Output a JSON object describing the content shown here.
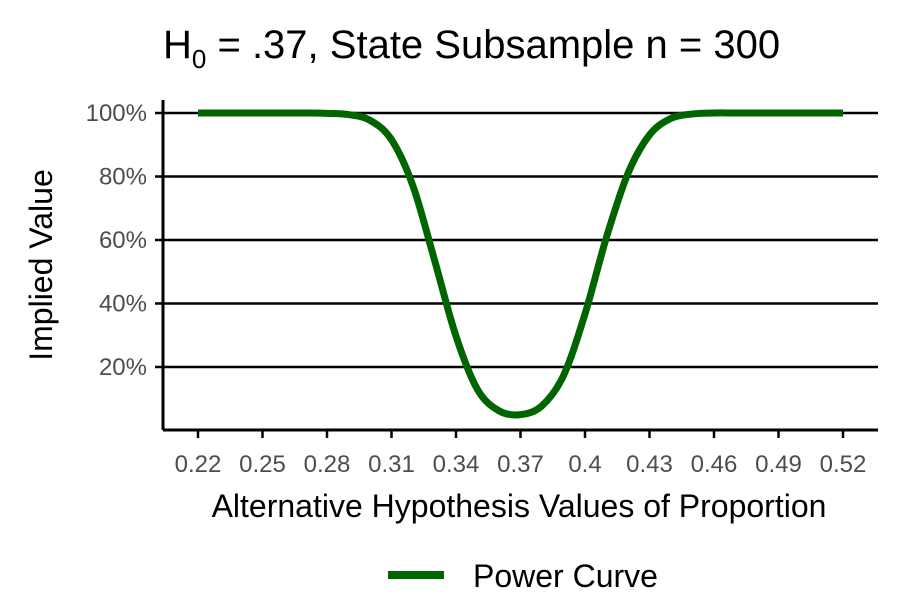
{
  "chart_data": {
    "type": "line",
    "title": {
      "prefix": "H",
      "subscript": "0",
      "rest": " = .37, State Subsample n = 300"
    },
    "xlabel": "Alternative Hypothesis Values of Proportion",
    "ylabel": "Implied Value",
    "x_ticks": [
      0.22,
      0.25,
      0.28,
      0.31,
      0.34,
      0.37,
      0.4,
      0.43,
      0.46,
      0.49,
      0.52
    ],
    "x_tick_labels": [
      "0.22",
      "0.25",
      "0.28",
      "0.31",
      "0.34",
      "0.37",
      "0.4",
      "0.43",
      "0.46",
      "0.49",
      "0.52"
    ],
    "xlim": [
      0.205,
      0.535
    ],
    "y_ticks": [
      0.2,
      0.4,
      0.6,
      0.8,
      1.0
    ],
    "y_tick_labels": [
      "20%",
      "40%",
      "60%",
      "80%",
      "100%"
    ],
    "ylim": [
      0.0,
      1.0
    ],
    "grid": "horizontal",
    "legend_position": "bottom",
    "series": [
      {
        "name": "Power Curve",
        "color": "#006400",
        "x": [
          0.22,
          0.23,
          0.24,
          0.25,
          0.26,
          0.27,
          0.28,
          0.29,
          0.3,
          0.31,
          0.32,
          0.33,
          0.34,
          0.35,
          0.36,
          0.37,
          0.38,
          0.39,
          0.4,
          0.41,
          0.42,
          0.43,
          0.44,
          0.45,
          0.46,
          0.47,
          0.48,
          0.49,
          0.5,
          0.51,
          0.52
        ],
        "y": [
          1.0,
          1.0,
          1.0,
          1.0,
          1.0,
          1.0,
          0.999,
          0.995,
          0.977,
          0.916,
          0.77,
          0.537,
          0.297,
          0.129,
          0.062,
          0.05,
          0.078,
          0.173,
          0.367,
          0.609,
          0.81,
          0.931,
          0.983,
          0.997,
          1.0,
          1.0,
          1.0,
          1.0,
          1.0,
          1.0,
          1.0
        ]
      }
    ]
  }
}
